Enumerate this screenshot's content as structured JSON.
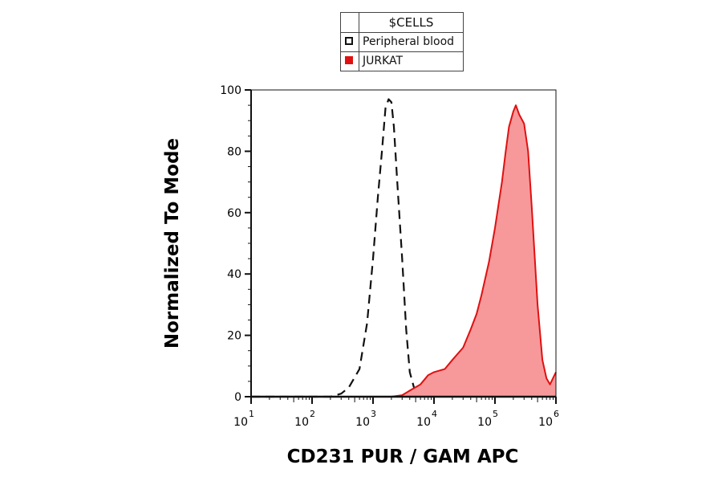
{
  "legend": {
    "title": "$CELLS",
    "entries": [
      {
        "label": "Peripheral blood",
        "style": "dashed-outline",
        "color": "#111111"
      },
      {
        "label": "JURKAT",
        "style": "filled",
        "color": "#e01010"
      }
    ]
  },
  "chart_data": {
    "type": "area",
    "title": "",
    "xlabel": "CD231 PUR / GAM APC",
    "ylabel": "Normalized To Mode",
    "x_scale": "log",
    "xlim": [
      10,
      1000000
    ],
    "ylim": [
      0,
      100
    ],
    "x_ticks": [
      {
        "base": "10",
        "exp": "1"
      },
      {
        "base": "10",
        "exp": "2"
      },
      {
        "base": "10",
        "exp": "3"
      },
      {
        "base": "10",
        "exp": "4"
      },
      {
        "base": "10",
        "exp": "5"
      },
      {
        "base": "10",
        "exp": "6"
      }
    ],
    "y_ticks": [
      0,
      20,
      40,
      60,
      80,
      100
    ],
    "series": [
      {
        "name": "Peripheral blood",
        "style": "dashed",
        "color": "#111111",
        "x": [
          1,
          200,
          300,
          400,
          600,
          800,
          1000,
          1200,
          1400,
          1600,
          1800,
          2000,
          2200,
          2500,
          3000,
          3500,
          4000,
          5000,
          6000
        ],
        "y": [
          0,
          0,
          1,
          3,
          9,
          24,
          45,
          65,
          80,
          94,
          97,
          96,
          88,
          70,
          45,
          22,
          8,
          1,
          0
        ]
      },
      {
        "name": "JURKAT",
        "style": "filled",
        "color": "#e01010",
        "fill": "#f7999b",
        "x": [
          2000,
          3000,
          4000,
          6000,
          8000,
          10000,
          15000,
          20000,
          30000,
          40000,
          50000,
          60000,
          80000,
          100000,
          130000,
          150000,
          170000,
          200000,
          220000,
          250000,
          300000,
          350000,
          400000,
          500000,
          600000,
          700000,
          800000,
          1000000
        ],
        "y": [
          0,
          0.5,
          2,
          4,
          7,
          8,
          9,
          12,
          16,
          22,
          27,
          33,
          44,
          55,
          70,
          80,
          88,
          93,
          95,
          92,
          89,
          80,
          62,
          30,
          12,
          6,
          4,
          8
        ]
      }
    ]
  }
}
